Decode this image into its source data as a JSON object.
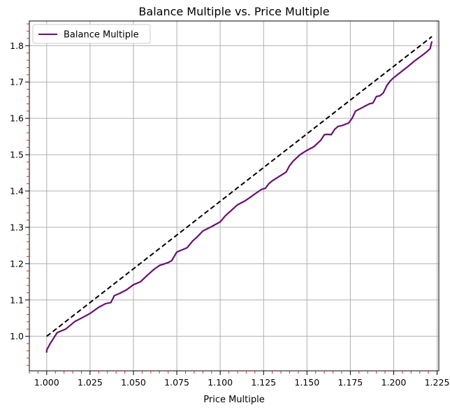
{
  "chart_data": {
    "type": "line",
    "title": "Balance Multiple vs. Price Multiple",
    "xlabel": "Price Multiple",
    "ylabel": "",
    "xlim": [
      0.99,
      1.226
    ],
    "ylim": [
      0.905,
      1.868
    ],
    "xticks": [
      1.0,
      1.025,
      1.05,
      1.075,
      1.1,
      1.125,
      1.15,
      1.175,
      1.2,
      1.225
    ],
    "xtick_labels": [
      "1.000",
      "1.025",
      "1.050",
      "1.075",
      "1.100",
      "1.125",
      "1.150",
      "1.175",
      "1.200",
      "1.225"
    ],
    "yticks": [
      1.0,
      1.1,
      1.2,
      1.3,
      1.4,
      1.5,
      1.6,
      1.7,
      1.8
    ],
    "ytick_labels": [
      "1.0",
      "1.1",
      "1.2",
      "1.3",
      "1.4",
      "1.5",
      "1.6",
      "1.7",
      "1.8"
    ],
    "grid": true,
    "legend_position": "top-left",
    "series": [
      {
        "name": "Balance Multiple",
        "color": "#6a0f73",
        "style": "solid",
        "x": [
          1.0,
          1.0,
          1.002,
          1.006,
          1.011,
          1.016,
          1.02,
          1.025,
          1.03,
          1.034,
          1.037,
          1.039,
          1.042,
          1.046,
          1.05,
          1.054,
          1.058,
          1.062,
          1.065,
          1.07,
          1.072,
          1.075,
          1.078,
          1.081,
          1.084,
          1.087,
          1.09,
          1.095,
          1.1,
          1.103,
          1.106,
          1.11,
          1.114,
          1.118,
          1.12,
          1.124,
          1.126,
          1.128,
          1.13,
          1.134,
          1.138,
          1.14,
          1.142,
          1.146,
          1.15,
          1.154,
          1.158,
          1.16,
          1.162,
          1.164,
          1.166,
          1.168,
          1.17,
          1.174,
          1.176,
          1.178,
          1.182,
          1.186,
          1.188,
          1.19,
          1.192,
          1.194,
          1.196,
          1.198,
          1.2,
          1.204,
          1.208,
          1.212,
          1.216,
          1.219,
          1.221,
          1.222
        ],
        "y": [
          0.955,
          0.962,
          0.98,
          1.01,
          1.02,
          1.04,
          1.05,
          1.063,
          1.08,
          1.09,
          1.093,
          1.112,
          1.118,
          1.128,
          1.142,
          1.15,
          1.168,
          1.185,
          1.195,
          1.203,
          1.208,
          1.232,
          1.238,
          1.244,
          1.262,
          1.275,
          1.29,
          1.302,
          1.315,
          1.332,
          1.345,
          1.362,
          1.372,
          1.385,
          1.392,
          1.405,
          1.407,
          1.42,
          1.428,
          1.44,
          1.452,
          1.47,
          1.482,
          1.5,
          1.512,
          1.522,
          1.54,
          1.555,
          1.556,
          1.555,
          1.57,
          1.578,
          1.58,
          1.587,
          1.6,
          1.62,
          1.63,
          1.64,
          1.642,
          1.66,
          1.662,
          1.67,
          1.69,
          1.703,
          1.712,
          1.727,
          1.742,
          1.758,
          1.772,
          1.783,
          1.792,
          1.812
        ]
      },
      {
        "name": "",
        "color": "#000000",
        "style": "dashed",
        "x": [
          1.0,
          1.222
        ],
        "y": [
          1.0,
          1.825
        ]
      }
    ]
  }
}
